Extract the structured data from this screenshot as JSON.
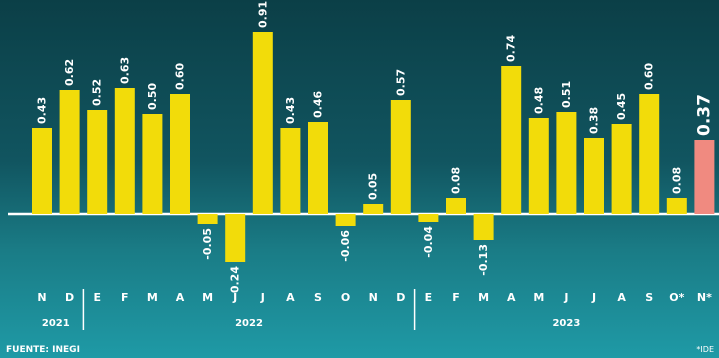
{
  "chart_data": {
    "type": "bar",
    "categories": [
      "N",
      "D",
      "E",
      "F",
      "M",
      "A",
      "M",
      "J",
      "J",
      "A",
      "S",
      "O",
      "N",
      "D",
      "E",
      "F",
      "M",
      "A",
      "M",
      "J",
      "J",
      "A",
      "S",
      "O*",
      "N*"
    ],
    "values": [
      0.43,
      0.62,
      0.52,
      0.63,
      0.5,
      0.6,
      -0.05,
      -0.24,
      0.91,
      0.43,
      0.46,
      -0.06,
      0.05,
      0.57,
      -0.04,
      0.08,
      -0.13,
      0.74,
      0.48,
      0.51,
      0.38,
      0.45,
      0.6,
      0.08,
      0.37
    ],
    "value_labels": [
      "0.43",
      "0.62",
      "0.52",
      "0.63",
      "0.50",
      "0.60",
      "-0.05",
      "-0.24",
      "0.91",
      "0.43",
      "0.46",
      "-0.06",
      "0.05",
      "0.57",
      "-0.04",
      "0.08",
      "-0.13",
      "0.74",
      "0.48",
      "0.51",
      "0.38",
      "0.45",
      "0.60",
      "0.08",
      "0.37"
    ],
    "years": [
      {
        "label": "2021",
        "start": 0,
        "end": 1
      },
      {
        "label": "2022",
        "start": 2,
        "end": 13
      },
      {
        "label": "2023",
        "start": 14,
        "end": 24
      }
    ],
    "highlight_index": 24,
    "colors": {
      "bar": "#f2dc0a",
      "highlight": "#f08a80",
      "label": "#ffffff",
      "highlight_label": "#ffffff"
    },
    "source": "FUENTE: INEGI",
    "footnote": "*IDE"
  }
}
